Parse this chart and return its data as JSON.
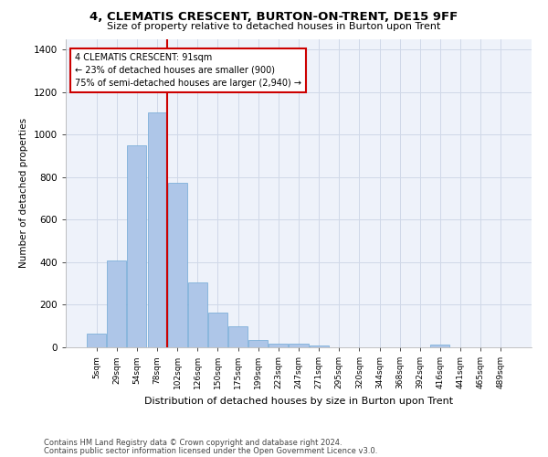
{
  "title": "4, CLEMATIS CRESCENT, BURTON-ON-TRENT, DE15 9FF",
  "subtitle": "Size of property relative to detached houses in Burton upon Trent",
  "xlabel": "Distribution of detached houses by size in Burton upon Trent",
  "ylabel": "Number of detached properties",
  "footnote1": "Contains HM Land Registry data © Crown copyright and database right 2024.",
  "footnote2": "Contains public sector information licensed under the Open Government Licence v3.0.",
  "categories": [
    "5sqm",
    "29sqm",
    "54sqm",
    "78sqm",
    "102sqm",
    "126sqm",
    "150sqm",
    "175sqm",
    "199sqm",
    "223sqm",
    "247sqm",
    "271sqm",
    "295sqm",
    "320sqm",
    "344sqm",
    "368sqm",
    "392sqm",
    "416sqm",
    "441sqm",
    "465sqm",
    "489sqm"
  ],
  "bar_values": [
    65,
    410,
    950,
    1105,
    775,
    305,
    165,
    100,
    35,
    18,
    18,
    10,
    0,
    0,
    0,
    0,
    0,
    12,
    0,
    0,
    0
  ],
  "bar_color": "#aec6e8",
  "bar_edge_color": "#6fa8d6",
  "annotation_box_text": "4 CLEMATIS CRESCENT: 91sqm\n← 23% of detached houses are smaller (900)\n75% of semi-detached houses are larger (2,940) →",
  "annotation_box_color": "#ffffff",
  "annotation_box_edge_color": "#cc0000",
  "vline_x_index": 3.48,
  "vline_color": "#cc0000",
  "grid_color": "#d0d8e8",
  "bg_color": "#eef2fa",
  "ylim": [
    0,
    1450
  ],
  "yticks": [
    0,
    200,
    400,
    600,
    800,
    1000,
    1200,
    1400
  ]
}
